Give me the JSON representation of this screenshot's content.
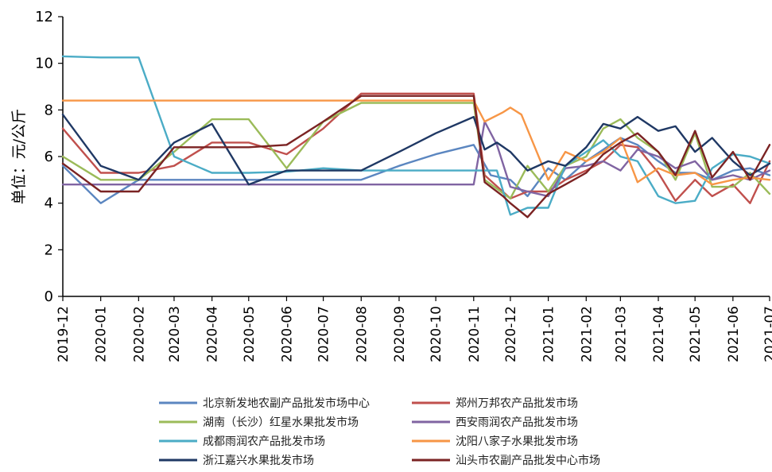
{
  "chart_data": {
    "type": "line",
    "title": "",
    "xlabel": "",
    "ylabel": "单位：元/公斤",
    "ylim": [
      0,
      12
    ],
    "yticks": [
      0,
      2,
      4,
      6,
      8,
      10,
      12
    ],
    "xlim": [
      "2019-12",
      "2021-07"
    ],
    "xticks": [
      "2019-12",
      "2020-01",
      "2020-02",
      "2020-03",
      "2020-04",
      "2020-05",
      "2020-06",
      "2020-07",
      "2020-08",
      "2020-09",
      "2020-10",
      "2020-11",
      "2020-12",
      "2021-01",
      "2021-02",
      "2021-03",
      "2021-04",
      "2021-05",
      "2021-06",
      "2021-07"
    ],
    "grid": false,
    "legend_position": "bottom",
    "series": [
      {
        "name": "北京新发地农副产品批发市场中心",
        "color": "#5b86c0",
        "points": [
          [
            "2019-12",
            5.6
          ],
          [
            "2020-01",
            4.0
          ],
          [
            "2020-02",
            5.0
          ],
          [
            "2020-03",
            5.0
          ],
          [
            "2020-04",
            5.0
          ],
          [
            "2020-05",
            5.0
          ],
          [
            "2020-06",
            5.0
          ],
          [
            "2020-07",
            5.0
          ],
          [
            "2020-08",
            5.0
          ],
          [
            "2020-09",
            5.6
          ],
          [
            "2020-10",
            6.1
          ],
          [
            "2020-11",
            6.5
          ],
          [
            "2020-11-15",
            5.2
          ],
          [
            "2020-12",
            5.0
          ],
          [
            "2020-12-15",
            4.3
          ],
          [
            "2021-01",
            5.5
          ],
          [
            "2021-01-15",
            5.0
          ],
          [
            "2021-02",
            5.8
          ],
          [
            "2021-02-15",
            6.3
          ],
          [
            "2021-03",
            6.8
          ],
          [
            "2021-03-15",
            6.5
          ],
          [
            "2021-04",
            5.8
          ],
          [
            "2021-04-15",
            5.3
          ],
          [
            "2021-05",
            5.3
          ],
          [
            "2021-05-15",
            5.0
          ],
          [
            "2021-06",
            5.4
          ],
          [
            "2021-06-15",
            5.5
          ],
          [
            "2021-07",
            5.2
          ]
        ]
      },
      {
        "name": "郑州万邦农产品批发市场",
        "color": "#c0504d",
        "points": [
          [
            "2019-12",
            7.2
          ],
          [
            "2020-01",
            5.3
          ],
          [
            "2020-02",
            5.3
          ],
          [
            "2020-03",
            5.6
          ],
          [
            "2020-04",
            6.6
          ],
          [
            "2020-05",
            6.6
          ],
          [
            "2020-06",
            6.1
          ],
          [
            "2020-07",
            7.2
          ],
          [
            "2020-08",
            8.7
          ],
          [
            "2020-09",
            8.7
          ],
          [
            "2020-10",
            8.7
          ],
          [
            "2020-11",
            8.7
          ],
          [
            "2020-11-10",
            5.2
          ],
          [
            "2020-12",
            4.2
          ],
          [
            "2020-12-15",
            4.5
          ],
          [
            "2021-01",
            4.5
          ],
          [
            "2021-01-15",
            5.0
          ],
          [
            "2021-02",
            5.4
          ],
          [
            "2021-02-15",
            5.8
          ],
          [
            "2021-03",
            6.5
          ],
          [
            "2021-03-15",
            6.4
          ],
          [
            "2021-04",
            5.3
          ],
          [
            "2021-04-15",
            4.1
          ],
          [
            "2021-05",
            5.0
          ],
          [
            "2021-05-15",
            4.3
          ],
          [
            "2021-06",
            4.8
          ],
          [
            "2021-06-15",
            4.0
          ],
          [
            "2021-07",
            5.8
          ]
        ]
      },
      {
        "name": "湖南（长沙）红星水果批发市场",
        "color": "#9bbb59",
        "points": [
          [
            "2019-12",
            6.0
          ],
          [
            "2020-01",
            5.0
          ],
          [
            "2020-02",
            5.0
          ],
          [
            "2020-03",
            6.2
          ],
          [
            "2020-04",
            7.6
          ],
          [
            "2020-05",
            7.6
          ],
          [
            "2020-06",
            5.5
          ],
          [
            "2020-07",
            7.5
          ],
          [
            "2020-08",
            8.3
          ],
          [
            "2020-09",
            8.3
          ],
          [
            "2020-10",
            8.3
          ],
          [
            "2020-11",
            8.3
          ],
          [
            "2020-11-10",
            5.0
          ],
          [
            "2020-12",
            4.2
          ],
          [
            "2020-12-15",
            5.6
          ],
          [
            "2021-01",
            4.5
          ],
          [
            "2021-01-15",
            5.6
          ],
          [
            "2021-02",
            6.0
          ],
          [
            "2021-02-15",
            7.2
          ],
          [
            "2021-03",
            7.6
          ],
          [
            "2021-03-15",
            6.8
          ],
          [
            "2021-04",
            6.2
          ],
          [
            "2021-04-15",
            5.0
          ],
          [
            "2021-05",
            7.0
          ],
          [
            "2021-05-15",
            4.7
          ],
          [
            "2021-06",
            4.7
          ],
          [
            "2021-06-15",
            5.3
          ],
          [
            "2021-07",
            4.4
          ]
        ]
      },
      {
        "name": "西安雨润农产品批发市场",
        "color": "#8064a2",
        "points": [
          [
            "2019-12",
            4.8
          ],
          [
            "2020-01",
            4.8
          ],
          [
            "2020-02",
            4.8
          ],
          [
            "2020-03",
            4.8
          ],
          [
            "2020-04",
            4.8
          ],
          [
            "2020-05",
            4.8
          ],
          [
            "2020-06",
            4.8
          ],
          [
            "2020-07",
            4.8
          ],
          [
            "2020-08",
            4.8
          ],
          [
            "2020-09",
            4.8
          ],
          [
            "2020-10",
            4.8
          ],
          [
            "2020-11",
            4.8
          ],
          [
            "2020-11-10",
            7.5
          ],
          [
            "2020-11-20",
            6.5
          ],
          [
            "2020-12",
            4.7
          ],
          [
            "2020-12-15",
            4.5
          ],
          [
            "2021-01",
            4.3
          ],
          [
            "2021-01-15",
            5.5
          ],
          [
            "2021-02",
            5.6
          ],
          [
            "2021-02-15",
            5.8
          ],
          [
            "2021-03",
            5.4
          ],
          [
            "2021-03-15",
            6.3
          ],
          [
            "2021-04",
            6.0
          ],
          [
            "2021-04-15",
            5.5
          ],
          [
            "2021-05",
            5.8
          ],
          [
            "2021-05-15",
            5.0
          ],
          [
            "2021-06",
            5.2
          ],
          [
            "2021-06-15",
            5.0
          ],
          [
            "2021-07",
            5.4
          ]
        ]
      },
      {
        "name": "成都雨润农产品批发市场",
        "color": "#4bacc6",
        "points": [
          [
            "2019-12",
            10.3
          ],
          [
            "2020-01",
            10.25
          ],
          [
            "2020-02",
            10.25
          ],
          [
            "2020-03",
            6.0
          ],
          [
            "2020-04",
            5.3
          ],
          [
            "2020-05",
            5.3
          ],
          [
            "2020-06",
            5.35
          ],
          [
            "2020-07",
            5.5
          ],
          [
            "2020-08",
            5.4
          ],
          [
            "2020-09",
            5.4
          ],
          [
            "2020-10",
            5.4
          ],
          [
            "2020-11",
            5.4
          ],
          [
            "2020-11-20",
            5.4
          ],
          [
            "2020-12",
            3.5
          ],
          [
            "2020-12-15",
            3.8
          ],
          [
            "2021-01",
            3.8
          ],
          [
            "2021-01-15",
            5.6
          ],
          [
            "2021-02",
            6.2
          ],
          [
            "2021-02-15",
            6.7
          ],
          [
            "2021-03",
            6.0
          ],
          [
            "2021-03-15",
            5.8
          ],
          [
            "2021-04",
            4.3
          ],
          [
            "2021-04-15",
            4.0
          ],
          [
            "2021-05",
            4.1
          ],
          [
            "2021-05-15",
            5.5
          ],
          [
            "2021-06",
            6.1
          ],
          [
            "2021-06-15",
            6.0
          ],
          [
            "2021-07",
            5.7
          ]
        ]
      },
      {
        "name": "沈阳八家子水果批发市场",
        "color": "#f79646",
        "points": [
          [
            "2019-12",
            8.4
          ],
          [
            "2020-01",
            8.4
          ],
          [
            "2020-02",
            8.4
          ],
          [
            "2020-03",
            8.4
          ],
          [
            "2020-04",
            8.4
          ],
          [
            "2020-05",
            8.4
          ],
          [
            "2020-06",
            8.4
          ],
          [
            "2020-07",
            8.4
          ],
          [
            "2020-08",
            8.4
          ],
          [
            "2020-09",
            8.4
          ],
          [
            "2020-10",
            8.4
          ],
          [
            "2020-11",
            8.4
          ],
          [
            "2020-11-10",
            7.5
          ],
          [
            "2020-11-25",
            7.9
          ],
          [
            "2020-12",
            8.1
          ],
          [
            "2020-12-10",
            7.8
          ],
          [
            "2021-01",
            5.0
          ],
          [
            "2021-01-15",
            6.2
          ],
          [
            "2021-02",
            5.8
          ],
          [
            "2021-02-15",
            6.2
          ],
          [
            "2021-03",
            6.8
          ],
          [
            "2021-03-15",
            4.9
          ],
          [
            "2021-04",
            5.5
          ],
          [
            "2021-04-15",
            5.2
          ],
          [
            "2021-05",
            5.3
          ],
          [
            "2021-05-15",
            4.8
          ],
          [
            "2021-06",
            5.0
          ],
          [
            "2021-06-15",
            5.1
          ],
          [
            "2021-07",
            5.0
          ]
        ]
      },
      {
        "name": "浙江嘉兴水果批发市场",
        "color": "#1f3864",
        "points": [
          [
            "2019-12",
            7.8
          ],
          [
            "2020-01",
            5.6
          ],
          [
            "2020-02",
            5.0
          ],
          [
            "2020-03",
            6.6
          ],
          [
            "2020-04",
            7.4
          ],
          [
            "2020-05",
            4.8
          ],
          [
            "2020-06",
            5.4
          ],
          [
            "2020-07",
            5.4
          ],
          [
            "2020-08",
            5.4
          ],
          [
            "2020-09",
            6.2
          ],
          [
            "2020-10",
            7.0
          ],
          [
            "2020-11",
            7.7
          ],
          [
            "2020-11-10",
            6.3
          ],
          [
            "2020-11-20",
            6.6
          ],
          [
            "2020-12",
            6.2
          ],
          [
            "2020-12-15",
            5.4
          ],
          [
            "2021-01",
            5.8
          ],
          [
            "2021-01-15",
            5.6
          ],
          [
            "2021-02",
            6.4
          ],
          [
            "2021-02-15",
            7.4
          ],
          [
            "2021-03",
            7.2
          ],
          [
            "2021-03-15",
            7.7
          ],
          [
            "2021-04",
            7.1
          ],
          [
            "2021-04-15",
            7.3
          ],
          [
            "2021-05",
            6.2
          ],
          [
            "2021-05-15",
            6.8
          ],
          [
            "2021-06",
            5.8
          ],
          [
            "2021-06-15",
            5.2
          ],
          [
            "2021-07",
            5.7
          ]
        ]
      },
      {
        "name": "汕头市农副产品批发中心市场",
        "color": "#7b2323",
        "points": [
          [
            "2019-12",
            5.7
          ],
          [
            "2020-01",
            4.5
          ],
          [
            "2020-02",
            4.5
          ],
          [
            "2020-03",
            6.4
          ],
          [
            "2020-04",
            6.4
          ],
          [
            "2020-05",
            6.4
          ],
          [
            "2020-06",
            6.5
          ],
          [
            "2020-07",
            7.5
          ],
          [
            "2020-08",
            8.6
          ],
          [
            "2020-09",
            8.6
          ],
          [
            "2020-10",
            8.6
          ],
          [
            "2020-11",
            8.6
          ],
          [
            "2020-11-10",
            4.9
          ],
          [
            "2020-11-25",
            4.3
          ],
          [
            "2020-12",
            4.0
          ],
          [
            "2020-12-15",
            3.4
          ],
          [
            "2021-01",
            4.4
          ],
          [
            "2021-01-15",
            4.8
          ],
          [
            "2021-02",
            5.3
          ],
          [
            "2021-02-15",
            6.1
          ],
          [
            "2021-03",
            6.6
          ],
          [
            "2021-03-15",
            7.0
          ],
          [
            "2021-04",
            6.2
          ],
          [
            "2021-04-15",
            5.2
          ],
          [
            "2021-05",
            7.1
          ],
          [
            "2021-05-15",
            5.1
          ],
          [
            "2021-06",
            6.2
          ],
          [
            "2021-06-15",
            5.0
          ],
          [
            "2021-07",
            6.5
          ]
        ]
      }
    ]
  }
}
